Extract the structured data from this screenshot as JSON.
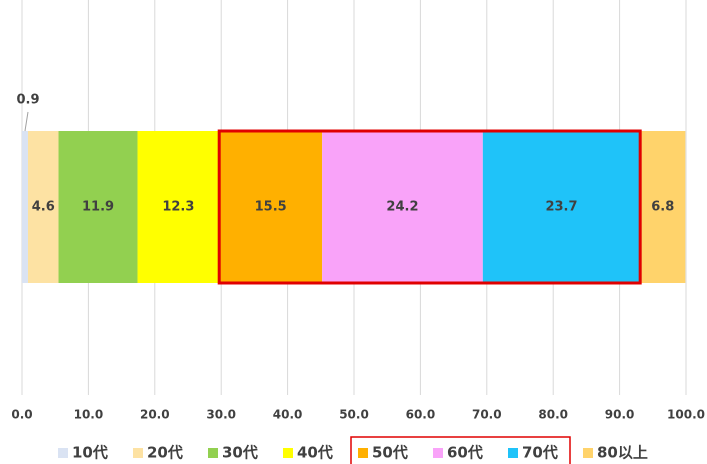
{
  "chart_data": {
    "type": "stacked_bar_horizontal",
    "series": [
      {
        "name": "10代",
        "color": "#dae3f3",
        "values": [
          0.9
        ]
      },
      {
        "name": "20代",
        "color": "#fde2a3",
        "values": [
          4.6
        ]
      },
      {
        "name": "30代",
        "color": "#92d050",
        "values": [
          11.9
        ]
      },
      {
        "name": "40代",
        "color": "#ffff00",
        "values": [
          12.3
        ]
      },
      {
        "name": "50代",
        "color": "#ffb000",
        "values": [
          15.5
        ]
      },
      {
        "name": "60代",
        "color": "#f9a3f9",
        "values": [
          24.2
        ]
      },
      {
        "name": "70代",
        "color": "#1fc3f9",
        "values": [
          23.7
        ]
      },
      {
        "name": "80以上",
        "color": "#ffd36b",
        "values": [
          6.8
        ]
      }
    ],
    "xlim": [
      0,
      100
    ],
    "xticks": [
      {
        "value": 0,
        "label": "0.0"
      },
      {
        "value": 10,
        "label": "10.0"
      },
      {
        "value": 20,
        "label": "20.0"
      },
      {
        "value": 30,
        "label": "30.0"
      },
      {
        "value": 40,
        "label": "40.0"
      },
      {
        "value": 50,
        "label": "50.0"
      },
      {
        "value": 60,
        "label": "60.0"
      },
      {
        "value": 70,
        "label": "70.0"
      },
      {
        "value": 80,
        "label": "80.0"
      },
      {
        "value": 90,
        "label": "90.0"
      },
      {
        "value": 100,
        "label": "100.0"
      }
    ],
    "grid": true,
    "legend": "bottom"
  }
}
